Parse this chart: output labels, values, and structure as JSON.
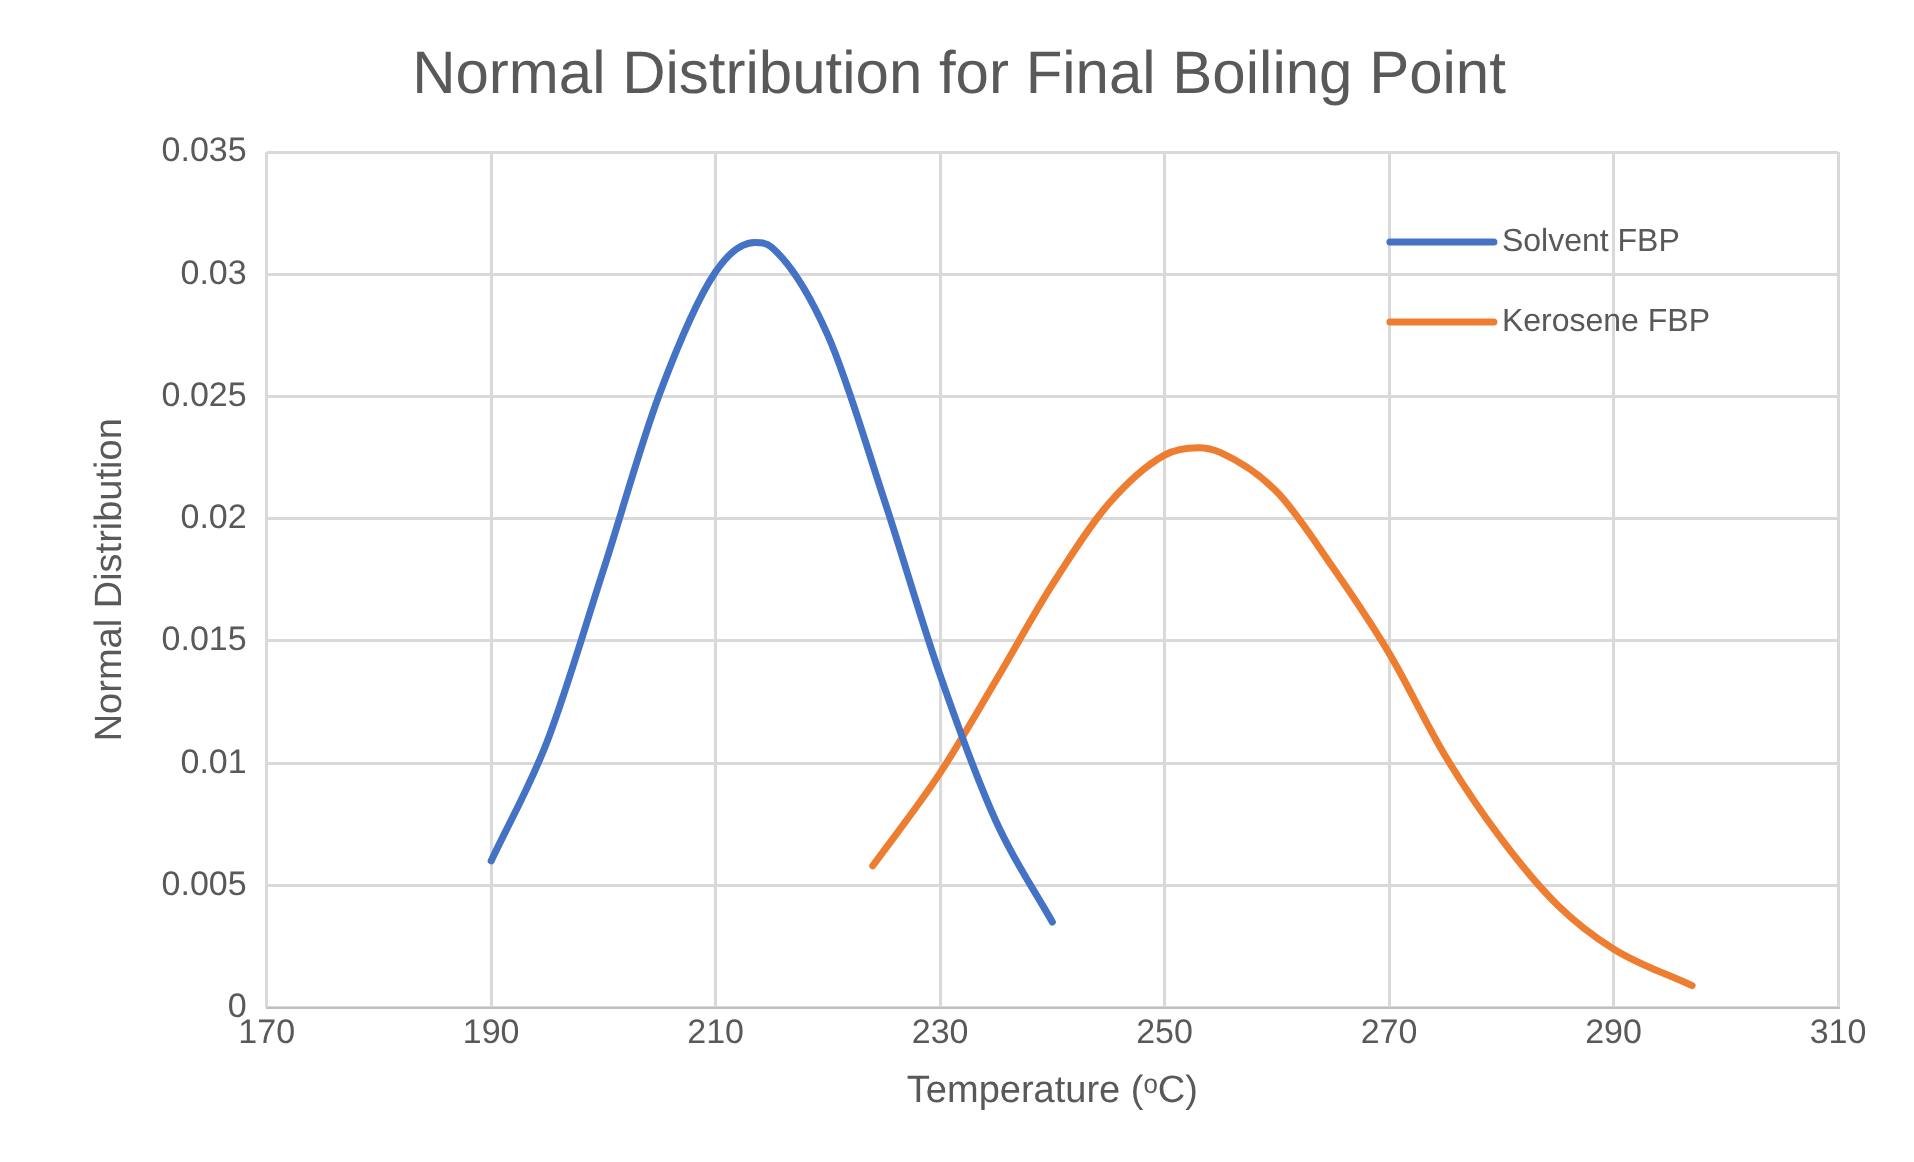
{
  "chart_data": {
    "type": "line",
    "title": "Normal Distribution for Final Boiling Point",
    "xlabel": "Temperature (ᵒC)",
    "ylabel": "Normal Distribution",
    "series": [
      {
        "name": "Solvent FBP",
        "color": "#4472c4",
        "x": [
          190,
          195,
          200,
          205,
          210,
          213.5,
          215,
          220,
          225,
          230,
          235,
          240
        ],
        "values": [
          0.006,
          0.0109,
          0.0179,
          0.0251,
          0.0301,
          0.0313,
          0.0311,
          0.0275,
          0.0208,
          0.0136,
          0.0076,
          0.0035
        ]
      },
      {
        "name": "Kerosene FBP",
        "color": "#ed7d31",
        "x": [
          224,
          230,
          235,
          240,
          245,
          250,
          253,
          255,
          260,
          265,
          270,
          275,
          280,
          285,
          290,
          297
        ],
        "values": [
          0.0058,
          0.0096,
          0.0134,
          0.0173,
          0.0206,
          0.0226,
          0.0229,
          0.0227,
          0.0211,
          0.018,
          0.0145,
          0.0103,
          0.0069,
          0.0042,
          0.0024,
          0.0009
        ]
      }
    ],
    "xlim": [
      170,
      310
    ],
    "xticks": [
      170,
      190,
      210,
      230,
      250,
      270,
      290,
      310
    ],
    "ylim": [
      0,
      0.035
    ],
    "yticks": [
      0,
      0.005,
      0.01,
      0.015,
      0.02,
      0.025,
      0.03,
      0.035
    ],
    "grid": true,
    "legend": "top right",
    "marker": "none",
    "line_style": "solid"
  }
}
